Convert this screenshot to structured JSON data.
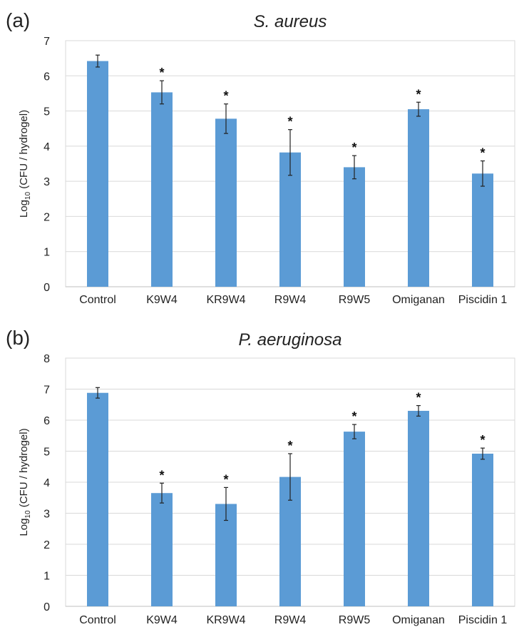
{
  "chart_data": [
    {
      "type": "bar",
      "panel_label": "(a)",
      "title": "S. aureus",
      "ylabel_main": "Log",
      "ylabel_sub": "10",
      "ylabel_rest": " (CFU / hydrogel)",
      "ylim": [
        0,
        7
      ],
      "yticks": [
        "0",
        "1",
        "2",
        "3",
        "4",
        "5",
        "6",
        "7"
      ],
      "grid": true,
      "categories": [
        "Control",
        "K9W4",
        "KR9W4",
        "R9W4",
        "R9W5",
        "Omiganan",
        "Piscidin 1"
      ],
      "values": [
        6.42,
        5.53,
        4.78,
        3.82,
        3.4,
        5.05,
        3.22
      ],
      "errors": [
        0.17,
        0.33,
        0.42,
        0.65,
        0.33,
        0.2,
        0.36
      ],
      "significance": [
        "",
        "*",
        "*",
        "*",
        "*",
        "*",
        "*"
      ],
      "bar_color": "#5b9bd5"
    },
    {
      "type": "bar",
      "panel_label": "(b)",
      "title": "P. aeruginosa",
      "ylabel_main": "Log",
      "ylabel_sub": "10",
      "ylabel_rest": " (CFU / hydrogel)",
      "ylim": [
        0,
        8
      ],
      "yticks": [
        "0",
        "1",
        "2",
        "3",
        "4",
        "5",
        "6",
        "7",
        "8"
      ],
      "grid": true,
      "categories": [
        "Control",
        "K9W4",
        "KR9W4",
        "R9W4",
        "R9W5",
        "Omiganan",
        "Piscidin 1"
      ],
      "values": [
        6.88,
        3.65,
        3.3,
        4.17,
        5.63,
        6.3,
        4.92
      ],
      "errors": [
        0.17,
        0.32,
        0.53,
        0.75,
        0.23,
        0.17,
        0.18
      ],
      "significance": [
        "",
        "*",
        "*",
        "*",
        "*",
        "*",
        "*"
      ],
      "bar_color": "#5b9bd5"
    }
  ]
}
